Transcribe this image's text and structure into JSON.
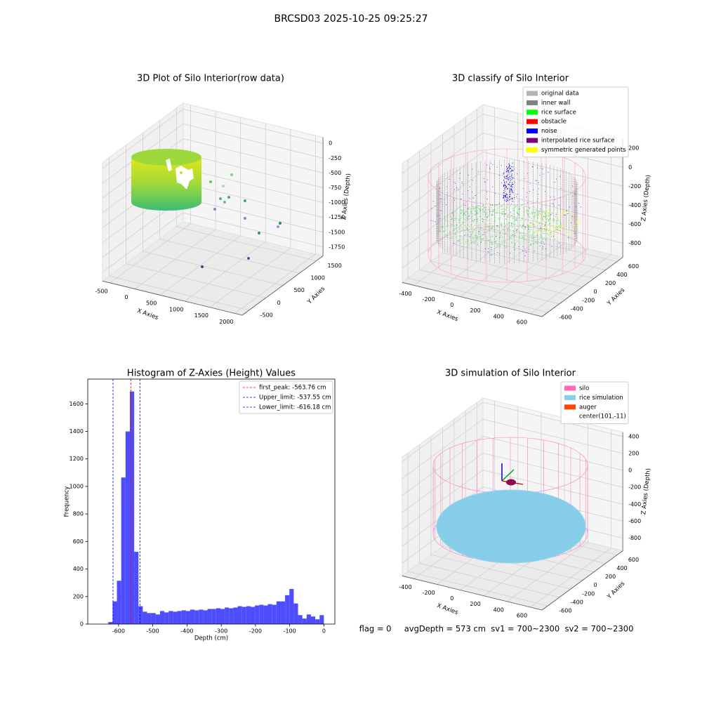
{
  "title": "BRCSD03 2025-10-25 09:25:27",
  "footer": "flag = 0     avgDepth = 573 cm  sv1 = 700~2300  sv2 = 700~2300",
  "chart_data": [
    {
      "type": "scatter3d",
      "title": "3D Plot of Silo Interior(row data)",
      "xlabel": "X Axies",
      "ylabel": "Y Axies",
      "zlabel": "Z Axies (Depth)",
      "xlim": [
        -650,
        2150
      ],
      "ylim": [
        -700,
        1700
      ],
      "zlim": [
        -1900,
        100
      ],
      "xticks": [
        -500,
        0,
        500,
        1000,
        1500,
        2000
      ],
      "yticks": [
        -500,
        0,
        500,
        1000,
        1500
      ],
      "zticks": [
        0,
        -250,
        -500,
        -750,
        -1000,
        -1250,
        -1500,
        -1750
      ]
    },
    {
      "type": "scatter3d",
      "title": "3D classify of Silo Interior",
      "xlabel": "X Axies",
      "ylabel": "Y Axies",
      "zlabel": "Z Axies (Depth)",
      "xlim": [
        -500,
        700
      ],
      "ylim": [
        -700,
        700
      ],
      "zlim": [
        -950,
        300
      ],
      "xticks": [
        -400,
        -200,
        0,
        200,
        400,
        600
      ],
      "yticks": [
        -600,
        -400,
        -200,
        0,
        200,
        400,
        600
      ],
      "zticks": [
        -800,
        -600,
        -400,
        -200,
        0,
        200
      ],
      "legend_loc": "upper right",
      "legend": [
        {
          "label": "original data",
          "color": "#b3b3b3"
        },
        {
          "label": "inner wall",
          "color": "#808080"
        },
        {
          "label": "rice surface",
          "color": "#00ff00"
        },
        {
          "label": "obstacle",
          "color": "#ff0000"
        },
        {
          "label": "noise",
          "color": "#0000ff"
        },
        {
          "label": "interpolated rice surface",
          "color": "#800080"
        },
        {
          "label": "symmetric generated points",
          "color": "#ffff00"
        }
      ]
    },
    {
      "type": "histogram",
      "title": "Histogram of Z-Axies (Height) Values",
      "xlabel": "Depth (cm)",
      "ylabel": "Frequency",
      "color": "#4d4dff",
      "bins": [
        -630,
        -617.4,
        -604.8,
        -592.2,
        -579.6,
        -567,
        -554.4,
        -541.8,
        -529.2,
        -516.6,
        -504,
        -491.4,
        -478.8,
        -466.2,
        -453.6,
        -441,
        -428.4,
        -415.8,
        -403.2,
        -390.6,
        -378,
        -365.4,
        -352.8,
        -340.2,
        -327.6,
        -315,
        -302.4,
        -289.8,
        -277.2,
        -264.6,
        -252,
        -239.4,
        -226.8,
        -214.2,
        -201.6,
        -189,
        -176.4,
        -163.8,
        -151.2,
        -138.6,
        -126,
        -113.4,
        -100.8,
        -88.2,
        -75.6,
        -63,
        -50.4,
        -37.8,
        -25.2,
        -12.6,
        0
      ],
      "counts": [
        15,
        165,
        315,
        1065,
        1400,
        1690,
        525,
        130,
        90,
        80,
        80,
        70,
        95,
        85,
        95,
        90,
        95,
        100,
        95,
        105,
        100,
        105,
        100,
        110,
        110,
        115,
        110,
        120,
        115,
        120,
        130,
        125,
        130,
        125,
        135,
        140,
        135,
        145,
        140,
        165,
        165,
        210,
        255,
        150,
        65,
        40,
        70,
        55,
        35,
        65
      ],
      "xlim": [
        -690,
        32
      ],
      "ylim": [
        0,
        1780
      ],
      "xticks": [
        -600,
        -500,
        -400,
        -300,
        -200,
        -100,
        0
      ],
      "yticks": [
        0,
        200,
        400,
        600,
        800,
        1000,
        1200,
        1400,
        1600
      ],
      "legend_loc": "upper right",
      "lines": [
        {
          "label": "first_peak: -563.76 cm",
          "value": -563.76,
          "color": "#ff0000"
        },
        {
          "label": "Upper_limit: -537.55 cm",
          "value": -537.55,
          "color": "#0000ff"
        },
        {
          "label": "Lower_limit: -616.18 cm",
          "value": -616.18,
          "color": "#0000ff"
        }
      ]
    },
    {
      "type": "scatter3d",
      "title": "3D simulation of Silo Interior",
      "xlabel": "X Axies",
      "ylabel": "Y Axies",
      "zlabel": "Z Axies (Depth)",
      "xlim": [
        -500,
        700
      ],
      "ylim": [
        -700,
        700
      ],
      "zlim": [
        -950,
        450
      ],
      "xticks": [
        -400,
        -200,
        0,
        200,
        400,
        600
      ],
      "yticks": [
        -600,
        -400,
        -200,
        0,
        200,
        400,
        600
      ],
      "zticks": [
        -800,
        -600,
        -400,
        -200,
        0,
        200,
        400
      ],
      "legend_loc": "upper right",
      "legend": [
        {
          "label": "silo",
          "color": "#ff69b4"
        },
        {
          "label": "rice simulation",
          "color": "#87ceeb"
        },
        {
          "label": "auger",
          "color": "#ff4500"
        },
        {
          "label": "center(101,-11)"
        }
      ]
    }
  ]
}
